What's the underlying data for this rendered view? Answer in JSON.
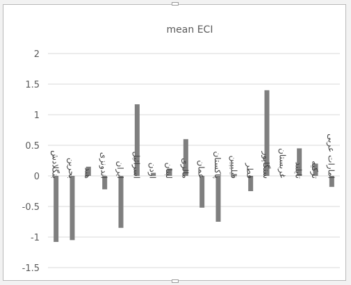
{
  "chart_data": {
    "type": "bar",
    "title": "mean ECI",
    "xlabel": "",
    "ylabel": "",
    "ylim": [
      -1.5,
      2
    ],
    "yticks": [
      "2",
      "1.5",
      "1",
      "0.5",
      "0",
      "-0.5",
      "-1",
      "-1.5"
    ],
    "grid": true,
    "legend": "none",
    "bar_color": "#7f7f7f",
    "categories": [
      "بنگلادش",
      "بحرین",
      "هند",
      "اندونزی",
      "ایران",
      "اسرائیل",
      "اردن",
      "لبنان",
      "مالزی",
      "عمان",
      "پاکستان",
      "فیلیپین",
      "قطر",
      "سنگاپور",
      "عربستان",
      "تایلند",
      "ترکیه",
      "امارات عربی"
    ],
    "values": [
      -1.08,
      -1.05,
      0.15,
      -0.22,
      -0.85,
      1.17,
      0.05,
      0.12,
      0.6,
      -0.52,
      -0.75,
      0.03,
      -0.25,
      1.4,
      0.01,
      0.45,
      0.2,
      -0.18
    ]
  }
}
